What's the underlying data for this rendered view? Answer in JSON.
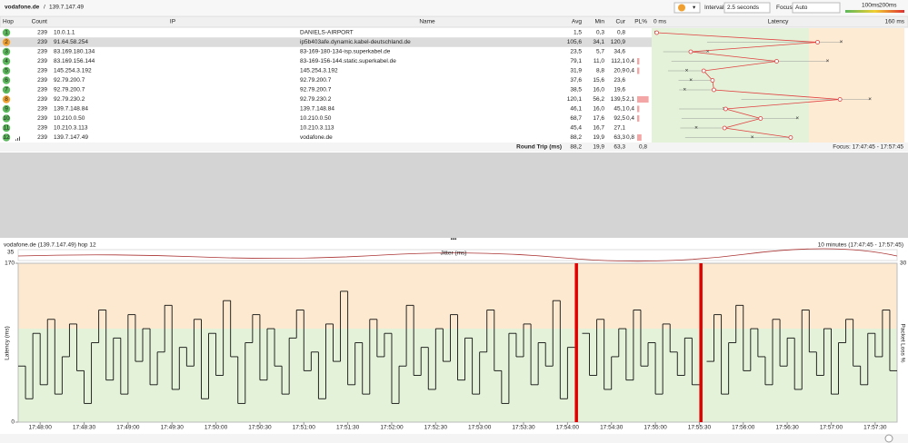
{
  "toolbar": {
    "target": "vodafone.de",
    "target_ip": "139.7.147.49",
    "interval_label": "Interval",
    "interval": "2.5 seconds",
    "focus_label": "Focus",
    "focus": "Auto",
    "thresholds": [
      {
        "value": 100,
        "label": "100ms"
      },
      {
        "value": 200,
        "label": "200ms"
      }
    ]
  },
  "table": {
    "headers": [
      "Hop",
      "Count",
      "IP",
      "Name",
      "Avg",
      "Min",
      "Cur",
      "PL%",
      "Latency"
    ],
    "latency_scale": {
      "min_label": "0 ms",
      "max": 160,
      "max_label": "160 ms"
    },
    "rows": [
      {
        "hop": "1",
        "count": "239",
        "ip": "10.0.1.1",
        "name": "DANIELS-AIRPORT",
        "avg": "1,5",
        "min": "0,3",
        "cur": "0,8",
        "pl": "",
        "color": "#5cb85c"
      },
      {
        "hop": "2",
        "count": "239",
        "ip": "91.64.58.254",
        "name": "ip5b403afe.dynamic.kabel-deutschland.de",
        "avg": "105,6",
        "min": "34,1",
        "cur": "120,9",
        "pl": "",
        "color": "#f0a030"
      },
      {
        "hop": "3",
        "count": "239",
        "ip": "83.169.180.134",
        "name": "83-169-180-134-isp.superkabel.de",
        "avg": "23,5",
        "min": "5,7",
        "cur": "34,6",
        "pl": "",
        "color": "#5cb85c"
      },
      {
        "hop": "4",
        "count": "239",
        "ip": "83.169.156.144",
        "name": "83-169-156-144.static.superkabel.de",
        "avg": "79,1",
        "min": "11,0",
        "cur": "112,1",
        "pl": "0,4",
        "color": "#5cb85c"
      },
      {
        "hop": "5",
        "count": "239",
        "ip": "145.254.3.192",
        "name": "145.254.3.192",
        "avg": "31,9",
        "min": "8,8",
        "cur": "20,9",
        "pl": "0,4",
        "color": "#5cb85c"
      },
      {
        "hop": "6",
        "count": "239",
        "ip": "92.79.200.7",
        "name": "92.79.200.7",
        "avg": "37,6",
        "min": "15,6",
        "cur": "23,6",
        "pl": "",
        "color": "#5cb85c"
      },
      {
        "hop": "7",
        "count": "239",
        "ip": "92.79.200.7",
        "name": "92.79.200.7",
        "avg": "38,5",
        "min": "16,0",
        "cur": "19,6",
        "pl": "",
        "color": "#5cb85c"
      },
      {
        "hop": "8",
        "count": "239",
        "ip": "92.79.230.2",
        "name": "92.79.230.2",
        "avg": "120,1",
        "min": "56,2",
        "cur": "139,5",
        "pl": "2,1",
        "color": "#f0a030"
      },
      {
        "hop": "9",
        "count": "239",
        "ip": "139.7.148.84",
        "name": "139.7.148.84",
        "avg": "46,1",
        "min": "16,0",
        "cur": "45,1",
        "pl": "0,4",
        "color": "#5cb85c"
      },
      {
        "hop": "10",
        "count": "239",
        "ip": "10.210.0.50",
        "name": "10.210.0.50",
        "avg": "68,7",
        "min": "17,6",
        "cur": "92,5",
        "pl": "0,4",
        "color": "#5cb85c"
      },
      {
        "hop": "11",
        "count": "239",
        "ip": "10.210.3.113",
        "name": "10.210.3.113",
        "avg": "45,4",
        "min": "16,7",
        "cur": "27,1",
        "pl": "",
        "color": "#5cb85c"
      },
      {
        "hop": "12",
        "count": "239",
        "ip": "139.7.147.49",
        "name": "vodafone.de",
        "avg": "88,2",
        "min": "19,9",
        "cur": "63,3",
        "pl": "0,8",
        "color": "#5cb85c"
      }
    ],
    "round_trip": {
      "label": "Round Trip (ms)",
      "avg": "88,2",
      "min": "19,9",
      "cur": "63,3",
      "pl": "0,8"
    },
    "focus_range": "Focus: 17:47:45 - 17:57:45"
  },
  "graph": {
    "title": "vodafone.de (139.7.147.49) hop 12",
    "range": "10 minutes (17:47:45 - 17:57:45)",
    "jitter_label": "Jitter (ms)",
    "jitter_max": 35,
    "y_label": "Latency (ms)",
    "y2_label": "Packet Loss %",
    "ylim": [
      0,
      170
    ],
    "yticks": [
      0,
      170
    ],
    "y2lim": [
      0,
      30
    ],
    "y2ticks": [
      30
    ],
    "time_labels": [
      "17:48:00",
      "17:48:30",
      "17:49:00",
      "17:49:30",
      "17:50:00",
      "17:50:30",
      "17:51:00",
      "17:51:30",
      "17:52:00",
      "17:52:30",
      "17:53:00",
      "17:53:30",
      "17:54:00",
      "17:54:30",
      "17:55:00",
      "17:55:30",
      "17:56:00",
      "17:56:30",
      "17:57:00",
      "17:57:30"
    ],
    "samples": [
      60,
      25,
      95,
      40,
      110,
      30,
      70,
      105,
      55,
      20,
      85,
      120,
      45,
      90,
      30,
      115,
      65,
      100,
      40,
      75,
      125,
      35,
      80,
      60,
      110,
      25,
      95,
      50,
      130,
      70,
      20,
      85,
      115,
      45,
      100,
      60,
      30,
      90,
      120,
      55,
      75,
      25,
      105,
      65,
      140,
      40,
      85,
      30,
      110,
      70,
      95,
      20,
      60,
      125,
      50,
      80,
      35,
      100,
      65,
      115,
      45,
      90,
      30,
      75,
      120,
      55,
      20,
      95,
      70,
      105,
      40,
      85,
      60,
      130,
      25,
      80,
      null,
      95,
      50,
      110,
      35,
      70,
      100,
      45,
      120,
      60,
      85,
      30,
      105,
      75,
      50,
      90,
      40,
      null,
      65,
      115,
      30,
      85,
      125,
      55,
      100,
      70,
      40,
      110,
      60,
      90,
      35,
      120,
      75,
      50,
      100,
      30,
      85,
      110,
      60,
      40,
      95,
      70,
      120,
      55
    ]
  }
}
